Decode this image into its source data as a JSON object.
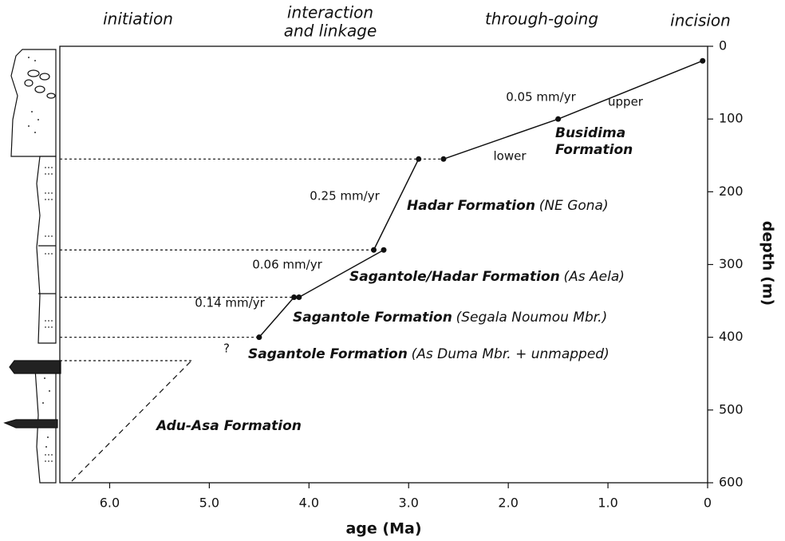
{
  "chart_data": {
    "type": "line",
    "xlabel": "age (Ma)",
    "ylabel": "depth (m)",
    "xlim": [
      6.5,
      0
    ],
    "ylim": [
      0,
      600
    ],
    "xticks": [
      {
        "value": 6,
        "label": "6.0"
      },
      {
        "value": 5,
        "label": "5.0"
      },
      {
        "value": 4,
        "label": "4.0"
      },
      {
        "value": 3,
        "label": "3.0"
      },
      {
        "value": 2,
        "label": "2.0"
      },
      {
        "value": 1,
        "label": "1.0"
      },
      0
    ],
    "yticks": [
      0,
      100,
      200,
      300,
      400,
      500,
      600
    ],
    "series": [
      {
        "color": "#111111",
        "x": [
          4.5,
          4.15
        ],
        "values": [
          400,
          345
        ]
      },
      {
        "color": "#111111",
        "x": [
          4.1,
          3.25
        ],
        "values": [
          345,
          280
        ]
      },
      {
        "color": "#111111",
        "x": [
          3.35,
          2.9
        ],
        "values": [
          280,
          155
        ]
      },
      {
        "color": "#111111",
        "x": [
          2.65,
          1.5,
          0.05
        ],
        "values": [
          155,
          100,
          20
        ]
      }
    ],
    "phases": [
      "initiation",
      "interaction",
      "and linkage",
      "through-going",
      "incision"
    ],
    "rates": [
      "0.05 mm/yr",
      "0.25 mm/yr",
      "0.06 mm/yr",
      "0.14 mm/yr"
    ],
    "annotations": [
      "upper",
      "lower",
      "?"
    ],
    "formations": [
      {
        "name": "Busidima",
        "name2": "Formation"
      },
      {
        "name": "Hadar Formation",
        "note": "(NE Gona)"
      },
      {
        "name": "Sagantole/Hadar Formation",
        "note": "(As Aela)"
      },
      {
        "name": "Sagantole Formation",
        "note": "(Segala Noumou Mbr.)"
      },
      {
        "name": "Sagantole Formation",
        "note": "(As Duma Mbr. + unmapped)"
      },
      {
        "name": "Adu-Asa Formation"
      }
    ]
  }
}
